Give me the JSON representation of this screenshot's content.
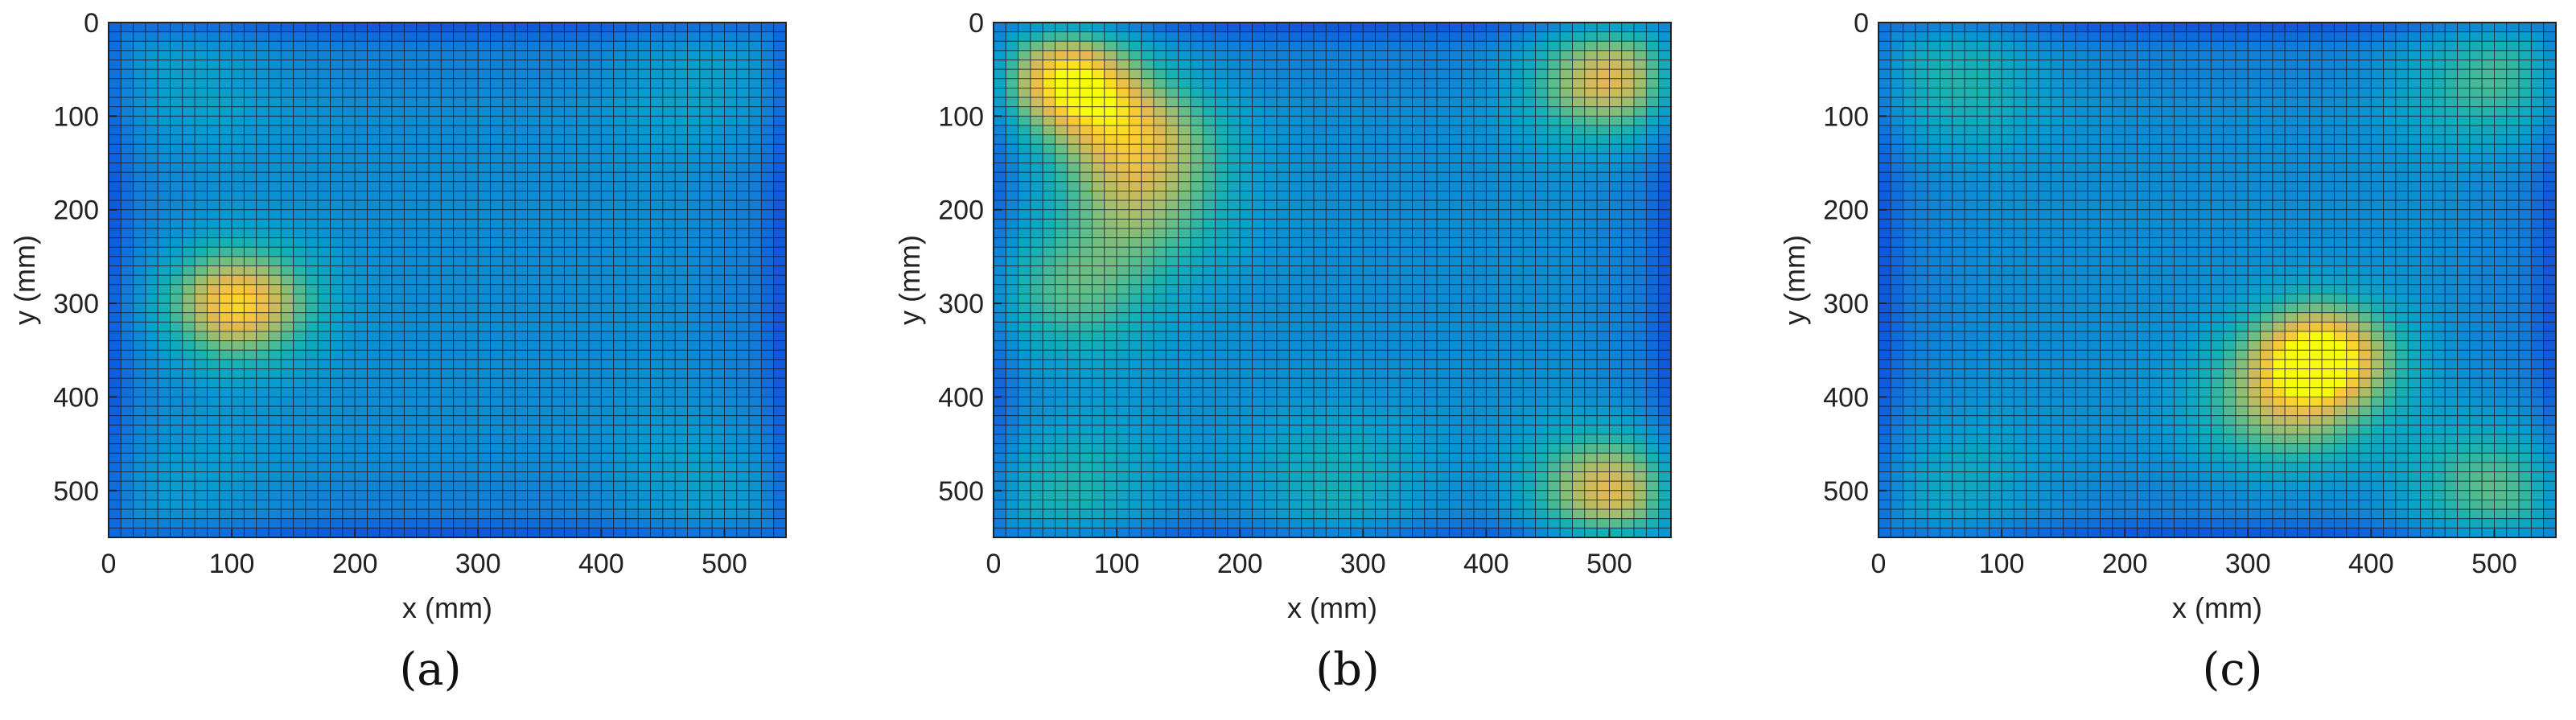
{
  "chart_data": [
    {
      "type": "heatmap",
      "caption": "(a)",
      "xlabel": "x (mm)",
      "ylabel": "y (mm)",
      "xlim": [
        0,
        550
      ],
      "ylim": [
        0,
        550
      ],
      "y_reversed": true,
      "xticks": [
        0,
        100,
        200,
        300,
        400,
        500
      ],
      "yticks": [
        0,
        100,
        200,
        300,
        400,
        500
      ],
      "colormap": "parula",
      "hotspots": [
        {
          "x": 105,
          "y": 300,
          "intensity": 0.85
        },
        {
          "x": 60,
          "y": 60,
          "intensity": 0.15
        },
        {
          "x": 490,
          "y": 60,
          "intensity": 0.15
        },
        {
          "x": 60,
          "y": 500,
          "intensity": 0.12
        },
        {
          "x": 490,
          "y": 500,
          "intensity": 0.15
        }
      ]
    },
    {
      "type": "heatmap",
      "caption": "(b)",
      "xlabel": "x (mm)",
      "ylabel": "y (mm)",
      "xlim": [
        0,
        550
      ],
      "ylim": [
        0,
        550
      ],
      "y_reversed": true,
      "xticks": [
        0,
        100,
        200,
        300,
        400,
        500
      ],
      "yticks": [
        0,
        100,
        200,
        300,
        400,
        500
      ],
      "colormap": "parula",
      "hotspots": [
        {
          "x": 60,
          "y": 60,
          "intensity": 0.9
        },
        {
          "x": 115,
          "y": 120,
          "intensity": 0.6
        },
        {
          "x": 120,
          "y": 200,
          "intensity": 0.4
        },
        {
          "x": 60,
          "y": 290,
          "intensity": 0.4
        },
        {
          "x": 500,
          "y": 60,
          "intensity": 0.75
        },
        {
          "x": 500,
          "y": 500,
          "intensity": 0.75
        },
        {
          "x": 60,
          "y": 500,
          "intensity": 0.3
        },
        {
          "x": 280,
          "y": 500,
          "intensity": 0.25
        }
      ]
    },
    {
      "type": "heatmap",
      "caption": "(c)",
      "xlabel": "x (mm)",
      "ylabel": "y (mm)",
      "xlim": [
        0,
        550
      ],
      "ylim": [
        0,
        550
      ],
      "y_reversed": true,
      "xticks": [
        0,
        100,
        200,
        300,
        400,
        500
      ],
      "yticks": [
        0,
        100,
        200,
        300,
        400,
        500
      ],
      "colormap": "parula",
      "hotspots": [
        {
          "x": 360,
          "y": 355,
          "intensity": 0.92
        },
        {
          "x": 330,
          "y": 410,
          "intensity": 0.5
        },
        {
          "x": 60,
          "y": 60,
          "intensity": 0.3
        },
        {
          "x": 500,
          "y": 60,
          "intensity": 0.4
        },
        {
          "x": 500,
          "y": 500,
          "intensity": 0.45
        },
        {
          "x": 60,
          "y": 500,
          "intensity": 0.2
        }
      ]
    }
  ]
}
